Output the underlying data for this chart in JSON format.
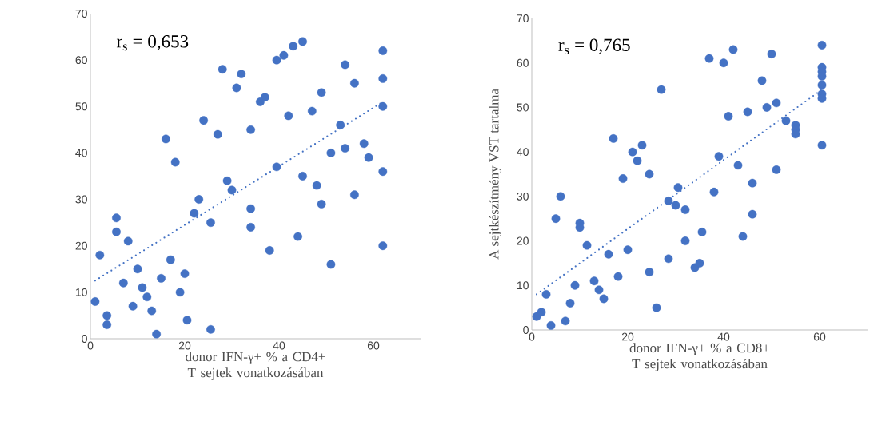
{
  "chart_data": [
    {
      "type": "scatter",
      "xlabel": "donor IFN-γ+ % a CD4+ T sejtek vonatkozásában",
      "annotations": [
        "r$_{s}$ = 0,653"
      ],
      "xlim": [
        0,
        70
      ],
      "xticks": [
        0,
        20,
        40,
        60
      ],
      "ylim": [
        0,
        70
      ],
      "yticks": [
        0,
        10,
        20,
        30,
        40,
        50,
        60,
        70
      ],
      "marker": "circle",
      "series": [
        {
          "color": "#4472c4",
          "x": [
            1,
            2,
            3.5,
            3.5,
            5.5,
            5.5,
            7,
            8,
            9,
            10,
            11,
            12,
            13,
            14,
            15,
            16,
            17,
            18,
            19,
            20,
            20.5,
            22,
            23,
            24,
            25.5,
            25.5,
            27,
            28,
            29,
            30,
            31,
            32,
            34,
            34,
            34,
            36,
            37,
            38,
            39.5,
            39.5,
            41,
            42,
            43,
            44,
            45,
            45,
            47,
            48,
            49,
            49,
            51,
            51,
            53,
            54,
            54,
            56,
            56,
            58,
            59,
            62,
            62,
            62,
            62,
            62
          ],
          "values": [
            8,
            18,
            5,
            3,
            26,
            23,
            12,
            21,
            7,
            15,
            11,
            9,
            6,
            1,
            13,
            43,
            17,
            38,
            10,
            14,
            4,
            27,
            30,
            47,
            2,
            25,
            44,
            58,
            34,
            32,
            54,
            57,
            45,
            28,
            24,
            51,
            52,
            19,
            37,
            60,
            61,
            48,
            63,
            22,
            64,
            35,
            49,
            33,
            53,
            29,
            40,
            16,
            46,
            59,
            41,
            55,
            31,
            42,
            39,
            62,
            56,
            50,
            36,
            20
          ]
        },
        {
          "type": "line",
          "color": "#4472c4",
          "line_style": "dotted",
          "marker": "none",
          "x": [
            1,
            62
          ],
          "values": [
            12.5,
            51
          ]
        }
      ]
    },
    {
      "type": "scatter",
      "xlabel": "donor IFN-γ+ % a CD8+ T sejtek vonatkozásában",
      "ylabel": "A sejtkészítmény VST tartalma",
      "annotations": [
        "r$_{s}$ = 0,765"
      ],
      "xlim": [
        0,
        70
      ],
      "xticks": [
        0,
        20,
        40,
        60
      ],
      "ylim": [
        0,
        70
      ],
      "yticks": [
        0,
        10,
        20,
        30,
        40,
        50,
        60,
        70
      ],
      "marker": "circle",
      "series": [
        {
          "color": "#4472c4",
          "x": [
            1,
            2,
            3,
            4,
            5,
            6,
            7,
            8,
            9,
            10,
            10,
            11.5,
            13,
            14,
            15,
            16,
            17,
            18,
            19,
            20,
            21,
            22,
            23,
            24.5,
            24.5,
            26,
            27,
            28.5,
            28.5,
            30,
            30.5,
            32,
            32,
            34,
            35,
            35.5,
            37,
            38,
            39,
            40,
            41,
            42,
            43,
            44,
            45,
            46,
            46,
            48,
            49,
            50,
            51,
            51,
            53,
            55,
            55,
            55,
            60.5,
            60.5,
            60.5,
            60.5,
            60.5,
            60.5,
            60.5,
            60.5
          ],
          "values": [
            3,
            4,
            8,
            1,
            25,
            30,
            2,
            6,
            10,
            24,
            23,
            19,
            11,
            9,
            7,
            17,
            43,
            12,
            34,
            18,
            40,
            38,
            41.5,
            35,
            13,
            5,
            54,
            29,
            16,
            28,
            32,
            27,
            20,
            14,
            15,
            22,
            61,
            31,
            39,
            60,
            48,
            63,
            37,
            21,
            49,
            33,
            26,
            56,
            50,
            62,
            51,
            36,
            47,
            46,
            45,
            44,
            64,
            59,
            58,
            57,
            55,
            53,
            52,
            41.5
          ]
        },
        {
          "type": "line",
          "color": "#4472c4",
          "line_style": "dotted",
          "marker": "none",
          "x": [
            1,
            60.5
          ],
          "values": [
            8,
            54
          ]
        }
      ]
    }
  ]
}
